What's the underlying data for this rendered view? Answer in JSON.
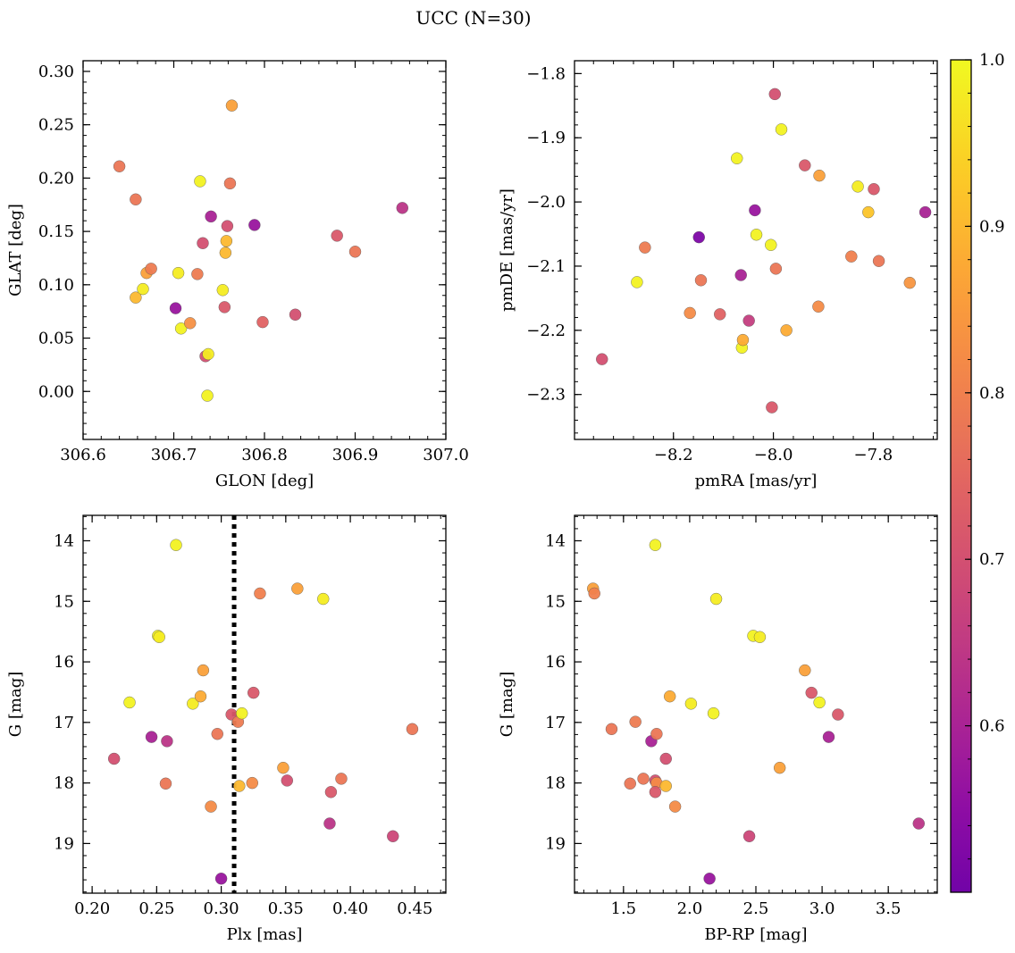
{
  "title": "UCC (N=30)",
  "colorbar": {
    "colormap": "plasma",
    "range": [
      0.5,
      1.0
    ],
    "ticks": [
      0.6,
      0.7,
      0.8,
      0.9,
      1.0
    ],
    "tick_labels": [
      "0.6",
      "0.7",
      "0.8",
      "0.9",
      "1.0"
    ]
  },
  "chart_data": [
    {
      "type": "scatter",
      "xlabel": "GLON [deg]",
      "ylabel": "GLAT [deg]",
      "xlim": [
        306.6,
        307.0
      ],
      "ylim": [
        -0.045,
        0.31
      ],
      "y_inverted": false,
      "xticks": [
        306.6,
        306.7,
        306.8,
        306.9,
        307.0
      ],
      "xtick_labels": [
        "306.6",
        "306.7",
        "306.8",
        "306.9",
        "307.0"
      ],
      "yticks": [
        0.0,
        0.05,
        0.1,
        0.15,
        0.2,
        0.25,
        0.3
      ],
      "ytick_labels": [
        "0.00",
        "0.05",
        "0.10",
        "0.15",
        "0.20",
        "0.25",
        "0.30"
      ],
      "points": [
        {
          "x": 306.64,
          "y": 0.211,
          "c": 0.78
        },
        {
          "x": 306.658,
          "y": 0.18,
          "c": 0.78
        },
        {
          "x": 306.658,
          "y": 0.088,
          "c": 0.9
        },
        {
          "x": 306.666,
          "y": 0.096,
          "c": 0.98
        },
        {
          "x": 306.67,
          "y": 0.111,
          "c": 0.86
        },
        {
          "x": 306.675,
          "y": 0.115,
          "c": 0.79
        },
        {
          "x": 306.702,
          "y": 0.078,
          "c": 0.57
        },
        {
          "x": 306.705,
          "y": 0.111,
          "c": 0.98
        },
        {
          "x": 306.708,
          "y": 0.059,
          "c": 0.99
        },
        {
          "x": 306.718,
          "y": 0.064,
          "c": 0.83
        },
        {
          "x": 306.726,
          "y": 0.11,
          "c": 0.79
        },
        {
          "x": 306.729,
          "y": 0.197,
          "c": 0.99
        },
        {
          "x": 306.732,
          "y": 0.139,
          "c": 0.7
        },
        {
          "x": 306.735,
          "y": 0.033,
          "c": 0.7
        },
        {
          "x": 306.737,
          "y": -0.004,
          "c": 0.99
        },
        {
          "x": 306.738,
          "y": 0.035,
          "c": 0.98
        },
        {
          "x": 306.741,
          "y": 0.164,
          "c": 0.6
        },
        {
          "x": 306.754,
          "y": 0.095,
          "c": 0.98
        },
        {
          "x": 306.756,
          "y": 0.079,
          "c": 0.72
        },
        {
          "x": 306.757,
          "y": 0.13,
          "c": 0.9
        },
        {
          "x": 306.758,
          "y": 0.141,
          "c": 0.9
        },
        {
          "x": 306.759,
          "y": 0.155,
          "c": 0.7
        },
        {
          "x": 306.762,
          "y": 0.195,
          "c": 0.78
        },
        {
          "x": 306.764,
          "y": 0.268,
          "c": 0.86
        },
        {
          "x": 306.789,
          "y": 0.156,
          "c": 0.57
        },
        {
          "x": 306.798,
          "y": 0.065,
          "c": 0.74
        },
        {
          "x": 306.834,
          "y": 0.072,
          "c": 0.7
        },
        {
          "x": 306.88,
          "y": 0.146,
          "c": 0.72
        },
        {
          "x": 306.9,
          "y": 0.131,
          "c": 0.78
        },
        {
          "x": 306.952,
          "y": 0.172,
          "c": 0.64
        }
      ]
    },
    {
      "type": "scatter",
      "xlabel": "pmRA [mas/yr]",
      "ylabel": "pmDE [mas/yr]",
      "xlim": [
        -8.398,
        -7.672
      ],
      "ylim": [
        -2.37,
        -1.78
      ],
      "y_inverted": false,
      "xticks": [
        -8.2,
        -8.0,
        -7.8
      ],
      "xtick_labels": [
        "−8.2",
        "−8.0",
        "−7.8"
      ],
      "yticks": [
        -2.3,
        -2.2,
        -2.1,
        -2.0,
        -1.9,
        -1.8
      ],
      "ytick_labels": [
        "−2.3",
        "−2.2",
        "−2.1",
        "−2.0",
        "−1.9",
        "−1.8"
      ],
      "points": [
        {
          "x": -8.343,
          "y": -2.245,
          "c": 0.7
        },
        {
          "x": -8.273,
          "y": -2.125,
          "c": 0.99
        },
        {
          "x": -8.257,
          "y": -2.071,
          "c": 0.79
        },
        {
          "x": -8.167,
          "y": -2.173,
          "c": 0.82
        },
        {
          "x": -8.149,
          "y": -2.055,
          "c": 0.52
        },
        {
          "x": -8.145,
          "y": -2.122,
          "c": 0.78
        },
        {
          "x": -8.107,
          "y": -2.175,
          "c": 0.74
        },
        {
          "x": -8.073,
          "y": -1.932,
          "c": 0.99
        },
        {
          "x": -8.065,
          "y": -2.114,
          "c": 0.6
        },
        {
          "x": -8.063,
          "y": -2.227,
          "c": 0.99
        },
        {
          "x": -8.061,
          "y": -2.215,
          "c": 0.88
        },
        {
          "x": -8.049,
          "y": -2.185,
          "c": 0.66
        },
        {
          "x": -8.037,
          "y": -2.013,
          "c": 0.57
        },
        {
          "x": -8.034,
          "y": -2.051,
          "c": 0.99
        },
        {
          "x": -8.005,
          "y": -2.067,
          "c": 0.99
        },
        {
          "x": -8.003,
          "y": -2.32,
          "c": 0.72
        },
        {
          "x": -7.997,
          "y": -1.832,
          "c": 0.7
        },
        {
          "x": -7.995,
          "y": -2.104,
          "c": 0.78
        },
        {
          "x": -7.984,
          "y": -1.887,
          "c": 0.99
        },
        {
          "x": -7.974,
          "y": -2.2,
          "c": 0.88
        },
        {
          "x": -7.937,
          "y": -1.943,
          "c": 0.72
        },
        {
          "x": -7.91,
          "y": -2.163,
          "c": 0.82
        },
        {
          "x": -7.908,
          "y": -1.959,
          "c": 0.86
        },
        {
          "x": -7.844,
          "y": -2.085,
          "c": 0.8
        },
        {
          "x": -7.831,
          "y": -1.976,
          "c": 0.98
        },
        {
          "x": -7.81,
          "y": -2.016,
          "c": 0.92
        },
        {
          "x": -7.799,
          "y": -1.98,
          "c": 0.72
        },
        {
          "x": -7.789,
          "y": -2.092,
          "c": 0.78
        },
        {
          "x": -7.727,
          "y": -2.126,
          "c": 0.84
        },
        {
          "x": -7.696,
          "y": -2.016,
          "c": 0.6
        }
      ]
    },
    {
      "type": "scatter",
      "xlabel": "Plx [mas]",
      "ylabel": "G [mag]",
      "xlim": [
        0.193,
        0.474
      ],
      "ylim": [
        19.82,
        13.58
      ],
      "y_inverted": true,
      "vline": {
        "x": 0.31,
        "style": "dotted",
        "color": "#000000"
      },
      "xticks": [
        0.2,
        0.25,
        0.3,
        0.35,
        0.4,
        0.45
      ],
      "xtick_labels": [
        "0.20",
        "0.25",
        "0.30",
        "0.35",
        "0.40",
        "0.45"
      ],
      "yticks": [
        14,
        15,
        16,
        17,
        18,
        19
      ],
      "ytick_labels": [
        "14",
        "15",
        "16",
        "17",
        "18",
        "19"
      ],
      "points": [
        {
          "x": 0.217,
          "y": 17.6,
          "c": 0.7
        },
        {
          "x": 0.229,
          "y": 16.67,
          "c": 0.99
        },
        {
          "x": 0.246,
          "y": 17.24,
          "c": 0.6
        },
        {
          "x": 0.251,
          "y": 15.57,
          "c": 0.99
        },
        {
          "x": 0.252,
          "y": 15.59,
          "c": 0.98
        },
        {
          "x": 0.257,
          "y": 18.01,
          "c": 0.78
        },
        {
          "x": 0.258,
          "y": 17.31,
          "c": 0.64
        },
        {
          "x": 0.265,
          "y": 14.07,
          "c": 0.99
        },
        {
          "x": 0.278,
          "y": 16.69,
          "c": 0.98
        },
        {
          "x": 0.284,
          "y": 16.57,
          "c": 0.88
        },
        {
          "x": 0.286,
          "y": 16.14,
          "c": 0.86
        },
        {
          "x": 0.292,
          "y": 18.39,
          "c": 0.82
        },
        {
          "x": 0.297,
          "y": 17.19,
          "c": 0.78
        },
        {
          "x": 0.3,
          "y": 19.58,
          "c": 0.57
        },
        {
          "x": 0.308,
          "y": 16.87,
          "c": 0.72
        },
        {
          "x": 0.313,
          "y": 16.99,
          "c": 0.79
        },
        {
          "x": 0.314,
          "y": 18.05,
          "c": 0.9
        },
        {
          "x": 0.316,
          "y": 16.85,
          "c": 0.99
        },
        {
          "x": 0.324,
          "y": 18.0,
          "c": 0.82
        },
        {
          "x": 0.325,
          "y": 16.51,
          "c": 0.72
        },
        {
          "x": 0.33,
          "y": 14.87,
          "c": 0.8
        },
        {
          "x": 0.348,
          "y": 17.75,
          "c": 0.86
        },
        {
          "x": 0.351,
          "y": 17.96,
          "c": 0.7
        },
        {
          "x": 0.359,
          "y": 14.79,
          "c": 0.86
        },
        {
          "x": 0.379,
          "y": 14.96,
          "c": 0.98
        },
        {
          "x": 0.384,
          "y": 18.67,
          "c": 0.64
        },
        {
          "x": 0.385,
          "y": 18.15,
          "c": 0.72
        },
        {
          "x": 0.393,
          "y": 17.93,
          "c": 0.78
        },
        {
          "x": 0.433,
          "y": 18.88,
          "c": 0.68
        },
        {
          "x": 0.448,
          "y": 17.11,
          "c": 0.78
        }
      ]
    },
    {
      "type": "scatter",
      "xlabel": "BP-RP [mag]",
      "ylabel": "G [mag]",
      "xlim": [
        1.13,
        3.87
      ],
      "ylim": [
        19.82,
        13.58
      ],
      "y_inverted": true,
      "xticks": [
        1.5,
        2.0,
        2.5,
        3.0,
        3.5
      ],
      "xtick_labels": [
        "1.5",
        "2.0",
        "2.5",
        "3.0",
        "3.5"
      ],
      "yticks": [
        14,
        15,
        16,
        17,
        18,
        19
      ],
      "ytick_labels": [
        "14",
        "15",
        "16",
        "17",
        "18",
        "19"
      ],
      "points": [
        {
          "x": 1.27,
          "y": 14.79,
          "c": 0.86
        },
        {
          "x": 1.28,
          "y": 14.87,
          "c": 0.8
        },
        {
          "x": 1.41,
          "y": 17.11,
          "c": 0.78
        },
        {
          "x": 1.55,
          "y": 18.01,
          "c": 0.78
        },
        {
          "x": 1.59,
          "y": 16.99,
          "c": 0.79
        },
        {
          "x": 1.65,
          "y": 17.93,
          "c": 0.78
        },
        {
          "x": 1.71,
          "y": 17.31,
          "c": 0.6
        },
        {
          "x": 1.74,
          "y": 14.07,
          "c": 0.99
        },
        {
          "x": 1.75,
          "y": 17.19,
          "c": 0.78
        },
        {
          "x": 1.74,
          "y": 17.96,
          "c": 0.7
        },
        {
          "x": 1.75,
          "y": 18.0,
          "c": 0.82
        },
        {
          "x": 1.74,
          "y": 18.15,
          "c": 0.72
        },
        {
          "x": 1.82,
          "y": 17.6,
          "c": 0.7
        },
        {
          "x": 1.82,
          "y": 18.05,
          "c": 0.9
        },
        {
          "x": 1.85,
          "y": 16.57,
          "c": 0.88
        },
        {
          "x": 1.89,
          "y": 18.39,
          "c": 0.82
        },
        {
          "x": 2.01,
          "y": 16.69,
          "c": 0.98
        },
        {
          "x": 2.15,
          "y": 19.58,
          "c": 0.57
        },
        {
          "x": 2.18,
          "y": 16.85,
          "c": 0.99
        },
        {
          "x": 2.2,
          "y": 14.96,
          "c": 0.98
        },
        {
          "x": 2.45,
          "y": 18.88,
          "c": 0.68
        },
        {
          "x": 2.48,
          "y": 15.57,
          "c": 0.99
        },
        {
          "x": 2.53,
          "y": 15.59,
          "c": 0.98
        },
        {
          "x": 2.68,
          "y": 17.75,
          "c": 0.86
        },
        {
          "x": 2.87,
          "y": 16.14,
          "c": 0.86
        },
        {
          "x": 2.92,
          "y": 16.51,
          "c": 0.72
        },
        {
          "x": 2.98,
          "y": 16.67,
          "c": 0.99
        },
        {
          "x": 3.05,
          "y": 17.24,
          "c": 0.6
        },
        {
          "x": 3.12,
          "y": 16.87,
          "c": 0.72
        },
        {
          "x": 3.73,
          "y": 18.67,
          "c": 0.64
        }
      ]
    }
  ]
}
